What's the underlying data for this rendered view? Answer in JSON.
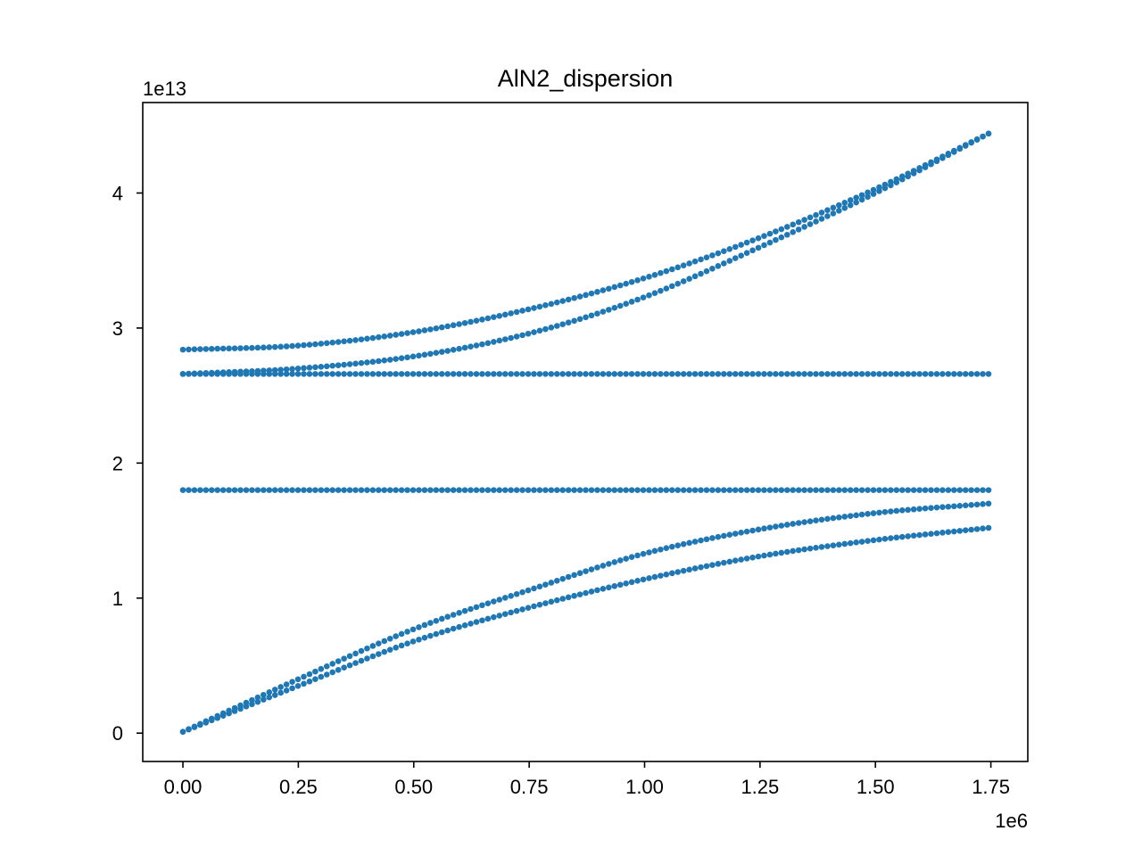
{
  "chart_data": {
    "type": "scatter",
    "title": "AlN2_dispersion",
    "xlabel": "",
    "ylabel": "",
    "x_offset_label": "1e6",
    "y_offset_label": "1e13",
    "xlim": [
      -87000,
      1830000
    ],
    "ylim": [
      -2100000000000.0,
      46700000000000.0
    ],
    "xticks": [
      0,
      250000,
      500000,
      750000,
      1000000,
      1250000,
      1500000,
      1750000
    ],
    "xtick_labels": [
      "0.00",
      "0.25",
      "0.50",
      "0.75",
      "1.00",
      "1.25",
      "1.50",
      "1.75"
    ],
    "yticks": [
      0,
      10000000000000.0,
      20000000000000.0,
      30000000000000.0,
      40000000000000.0
    ],
    "ytick_labels": [
      "0",
      "1",
      "2",
      "3",
      "4"
    ],
    "grid": false,
    "legend": "none",
    "marker_color": "#1f77b4",
    "point_count_per_series": 141,
    "series": [
      {
        "x": [
          0,
          250000,
          500000,
          750000,
          1000000,
          1250000,
          1500000,
          1745000
        ],
        "values": [
          100000000000.0,
          3500000000000.0,
          6800000000000.0,
          9300000000000.0,
          11400000000000.0,
          13100000000000.0,
          14300000000000.0,
          15200000000000.0
        ]
      },
      {
        "x": [
          0,
          250000,
          500000,
          750000,
          1000000,
          1250000,
          1500000,
          1745000
        ],
        "values": [
          100000000000.0,
          4000000000000.0,
          7700000000000.0,
          10600000000000.0,
          13300000000000.0,
          15100000000000.0,
          16300000000000.0,
          17000000000000.0
        ]
      },
      {
        "x": [
          0,
          1745000
        ],
        "values": [
          18000000000000.0,
          18000000000000.0
        ]
      },
      {
        "x": [
          0,
          1745000
        ],
        "values": [
          26600000000000.0,
          26600000000000.0
        ]
      },
      {
        "x": [
          0,
          250000,
          500000,
          750000,
          1000000,
          1250000,
          1500000,
          1745000
        ],
        "values": [
          26600000000000.0,
          27000000000000.0,
          27900000000000.0,
          29600000000000.0,
          32300000000000.0,
          36000000000000.0,
          40000000000000.0,
          44400000000000.0
        ]
      },
      {
        "x": [
          0,
          250000,
          500000,
          750000,
          1000000,
          1250000,
          1500000,
          1745000
        ],
        "values": [
          28400000000000.0,
          28700000000000.0,
          29700000000000.0,
          31400000000000.0,
          33700000000000.0,
          36700000000000.0,
          40300000000000.0,
          44400000000000.0
        ]
      }
    ]
  }
}
